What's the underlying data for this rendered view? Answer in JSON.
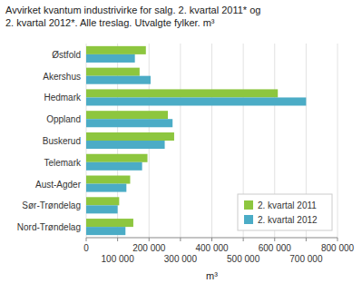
{
  "chart_data": {
    "type": "bar",
    "orientation": "horizontal",
    "title": "Avvirket kvantum industrivirke for salg. 2. kvartal 2011* og",
    "subtitle": "2. kvartal 2012*. Alle treslag. Utvalgte fylker. m³",
    "categories": [
      "Østfold",
      "Akershus",
      "Hedmark",
      "Oppland",
      "Buskerud",
      "Telemark",
      "Aust-Agder",
      "Sør-Trøndelag",
      "Nord-Trøndelag"
    ],
    "series": [
      {
        "name": "2. kvartal 2011",
        "color": "#8DC63F",
        "values": [
          190000,
          170000,
          610000,
          260000,
          280000,
          195000,
          140000,
          105000,
          150000
        ]
      },
      {
        "name": "2. kvartal 2012",
        "color": "#4BACC6",
        "values": [
          155000,
          205000,
          700000,
          275000,
          250000,
          178000,
          128000,
          100000,
          125000
        ]
      }
    ],
    "x_label": "m³",
    "xlim": [
      0,
      800000
    ],
    "xticks": [
      0,
      {
        "value": 100000,
        "label": "100 000"
      },
      {
        "value": 200000,
        "label": "200 000"
      },
      {
        "value": 300000,
        "label": "300 000"
      },
      {
        "value": 400000,
        "label": "400 000"
      },
      {
        "value": 500000,
        "label": "500 000"
      },
      {
        "value": 600000,
        "label": "600 000"
      },
      {
        "value": 700000,
        "label": "700 000"
      },
      {
        "value": 800000,
        "label": "800 000"
      }
    ],
    "grid": true,
    "legend": "lower right"
  }
}
